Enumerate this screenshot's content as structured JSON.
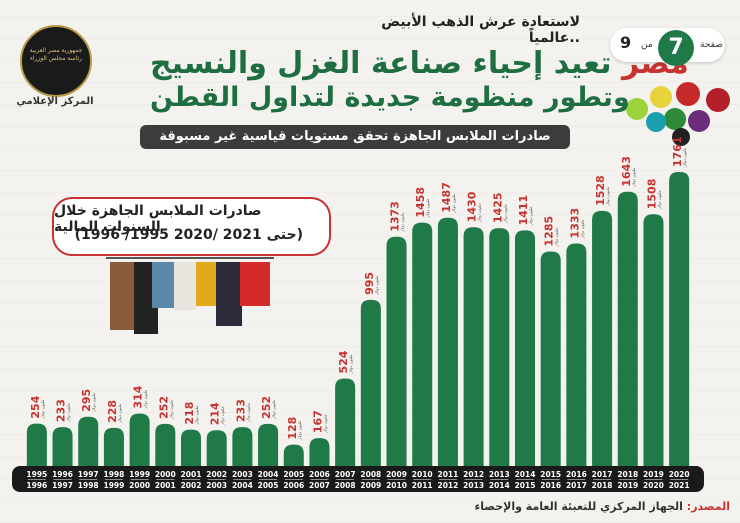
{
  "header": {
    "tagline": "لاستعادة عرش الذهب الأبيض عالمياً..",
    "title_accent": "مصر",
    "title_line1": "تعيد إحياء صناعة الغزل والنسيج",
    "title_line2": "وتطور منظومة جديدة لتداول القطن",
    "subtitle": "صادرات الملابس الجاهزة تحقق مستويات قياسية غير مسبوقة"
  },
  "page": {
    "label": "صفحة",
    "current": "7",
    "of": "من",
    "total": "9"
  },
  "logo": {
    "text": "جمهورية مصر العربية رئاسة مجلس الوزراء",
    "caption": "المركز الإعلامي"
  },
  "inset": {
    "title": "صادرات الملابس الجاهزة خلال السنوات المالية",
    "range": "(1996 /1995 حتى 2021 /2020)"
  },
  "source": {
    "label": "المصدر:",
    "text": "الجهاز المركزي للتعبئة العامة والإحصاء"
  },
  "colors": {
    "bar": "#1f7a47",
    "value": "#c8322f",
    "axis_band": "#1a1a1a",
    "axis_text": "#ffffff"
  },
  "chart_data": {
    "type": "bar",
    "value_unit": "مليون دولار",
    "categories": [
      [
        "1995",
        "1996"
      ],
      [
        "1996",
        "1997"
      ],
      [
        "1997",
        "1998"
      ],
      [
        "1998",
        "1999"
      ],
      [
        "1999",
        "2000"
      ],
      [
        "2000",
        "2001"
      ],
      [
        "2001",
        "2002"
      ],
      [
        "2002",
        "2003"
      ],
      [
        "2003",
        "2004"
      ],
      [
        "2004",
        "2005"
      ],
      [
        "2005",
        "2006"
      ],
      [
        "2006",
        "2007"
      ],
      [
        "2007",
        "2008"
      ],
      [
        "2008",
        "2009"
      ],
      [
        "2009",
        "2010"
      ],
      [
        "2010",
        "2011"
      ],
      [
        "2011",
        "2012"
      ],
      [
        "2012",
        "2013"
      ],
      [
        "2013",
        "2014"
      ],
      [
        "2014",
        "2015"
      ],
      [
        "2015",
        "2016"
      ],
      [
        "2016",
        "2017"
      ],
      [
        "2017",
        "2018"
      ],
      [
        "2018",
        "2019"
      ],
      [
        "2019",
        "2020"
      ],
      [
        "2020",
        "2021"
      ]
    ],
    "values": [
      254,
      233,
      295,
      228,
      314,
      252,
      218,
      214,
      233,
      252,
      128,
      167,
      524,
      995,
      1373,
      1458,
      1487,
      1430,
      1425,
      1411,
      1285,
      1333,
      1528,
      1643,
      1508,
      1761
    ],
    "ylim": [
      0,
      1761
    ]
  }
}
